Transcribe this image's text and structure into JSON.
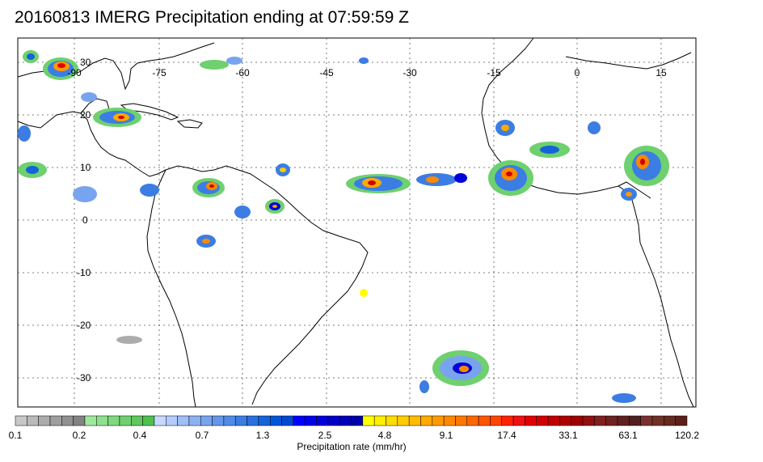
{
  "title": "20160813 IMERG Precipitation ending at 07:59:59 Z",
  "map": {
    "lon_labels": [
      "-90",
      "-75",
      "-60",
      "-45",
      "-30",
      "-15",
      "0",
      "15"
    ],
    "lat_labels": [
      "30",
      "20",
      "10",
      "0",
      "-10",
      "-20",
      "-30"
    ]
  },
  "colorbar": {
    "title": "Precipitation rate (mm/hr)",
    "labels": [
      "0.1",
      "0.2",
      "0.4",
      "0.7",
      "1.3",
      "2.5",
      "4.8",
      "9.1",
      "17.4",
      "33.1",
      "63.1",
      "120.2"
    ],
    "colors": [
      "#c8c8c8",
      "#bababa",
      "#acacac",
      "#9e9e9e",
      "#909090",
      "#828282",
      "#9ee89e",
      "#8ee08e",
      "#7ed87e",
      "#6ed06e",
      "#5ec85e",
      "#4ec04e",
      "#c8d8ff",
      "#b4cbfb",
      "#a0bef7",
      "#8cb1f3",
      "#78a4ef",
      "#6497eb",
      "#508ae7",
      "#3c7de3",
      "#2870df",
      "#1463db",
      "#0056d7",
      "#0049d3",
      "#0000ff",
      "#0000e8",
      "#0000d8",
      "#0000c8",
      "#0000b8",
      "#0000a8",
      "#ffff00",
      "#ffee00",
      "#ffdd00",
      "#ffcc00",
      "#ffbb00",
      "#ffaa00",
      "#ff9900",
      "#ff8800",
      "#ff7700",
      "#ff6600",
      "#ff5500",
      "#ff4400",
      "#ff2200",
      "#f01010",
      "#e00000",
      "#d00000",
      "#c00000",
      "#b00000",
      "#a00000",
      "#901010",
      "#802020",
      "#702020",
      "#602020",
      "#502020",
      "#7a3030",
      "#703028",
      "#662820",
      "#5c2018"
    ]
  }
}
